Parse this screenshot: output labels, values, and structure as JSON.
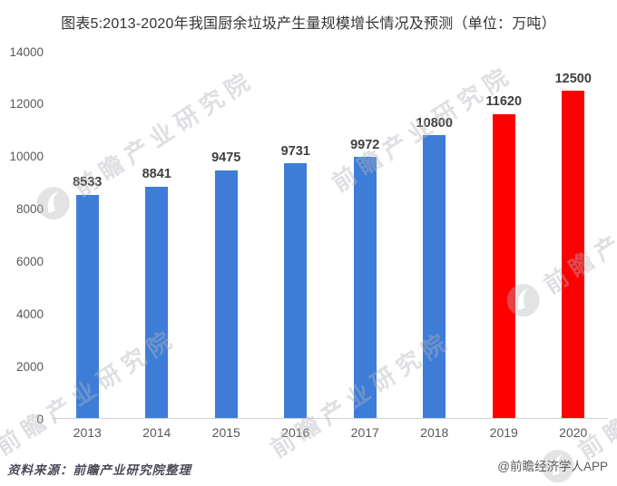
{
  "title": "图表5:2013-2020年我国厨余垃圾产生量规模增长情况及预测（单位：万吨）",
  "chart_data": {
    "type": "bar",
    "title": "图表5:2013-2020年我国厨余垃圾产生量规模增长情况及预测",
    "unit": "万吨",
    "categories": [
      "2013",
      "2014",
      "2015",
      "2016",
      "2017",
      "2018",
      "2019",
      "2020"
    ],
    "values": [
      8533,
      8841,
      9475,
      9731,
      9972,
      10800,
      11620,
      12500
    ],
    "bar_colors": [
      "#3d7dd8",
      "#3d7dd8",
      "#3d7dd8",
      "#3d7dd8",
      "#3d7dd8",
      "#3d7dd8",
      "#fe0000",
      "#fe0000"
    ],
    "actual_color": "#3d7dd8",
    "forecast_color": "#fe0000",
    "forecast_years": [
      "2019",
      "2020"
    ],
    "ylim": [
      0,
      14000
    ],
    "yticks": [
      0,
      2000,
      4000,
      6000,
      8000,
      10000,
      12000,
      14000
    ],
    "grid": false,
    "legend_position": "none",
    "data_labels": true
  },
  "watermark": {
    "text": "前瞻产业研究院",
    "logo_icon": "qianzhan-swoosh-icon"
  },
  "footer": {
    "source": "资料来源：前瞻产业研究院整理",
    "credit": "@前瞻经济学人APP"
  },
  "colors": {
    "title_text": "#333333",
    "value_label": "#3f3f3f",
    "tick_label": "#595959",
    "axis_line": "#d2d2d2",
    "watermark": "#b0b2ba"
  }
}
